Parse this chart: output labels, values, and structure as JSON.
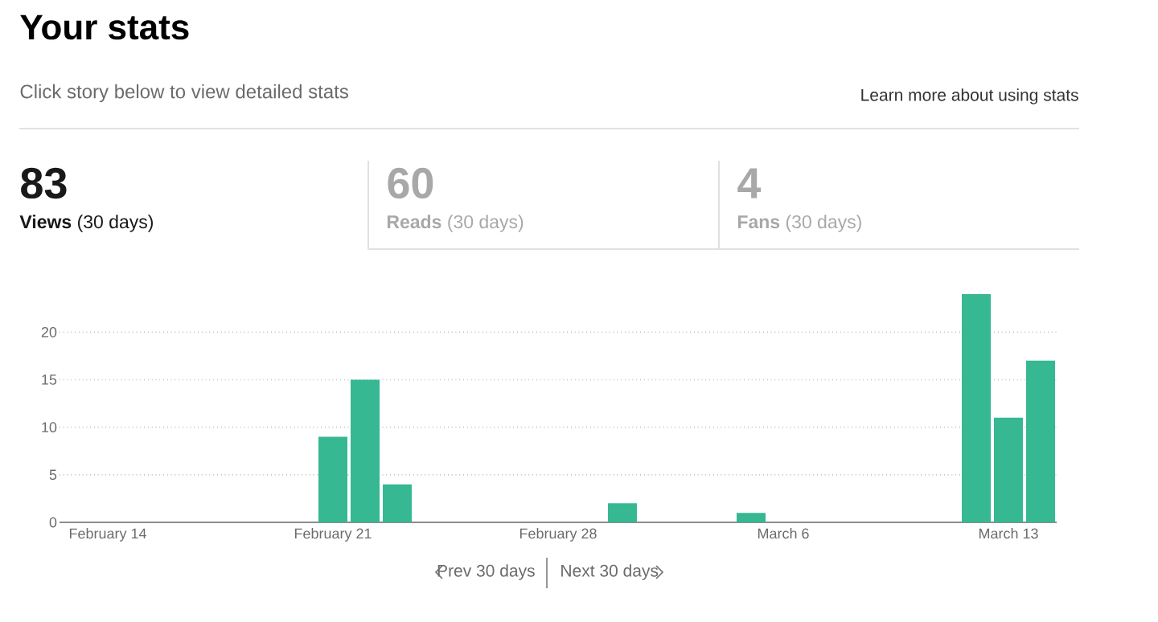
{
  "chart_data": {
    "type": "bar",
    "title": "Your stats",
    "subtitle": "Click story below to view detailed stats",
    "annotations": [
      "Learn more about using stats",
      "83",
      "**Views** (30 days)",
      "60",
      "**Reads** (30 days)",
      "4",
      "**Fans** (30 days)",
      "Prev 30 days",
      "Next 30 days"
    ],
    "categories": [
      null,
      "February 14",
      null,
      null,
      null,
      null,
      null,
      null,
      "February 21",
      null,
      null,
      null,
      null,
      null,
      null,
      "February 28",
      null,
      null,
      null,
      null,
      null,
      null,
      "March 6",
      null,
      null,
      null,
      null,
      null,
      null,
      "March 13",
      null
    ],
    "values": [
      0,
      0,
      0,
      0,
      0,
      0,
      0,
      0,
      9,
      15,
      4,
      0,
      0,
      0,
      0,
      0,
      0,
      2,
      0,
      0,
      0,
      1,
      0,
      0,
      0,
      0,
      0,
      0,
      24,
      11,
      17
    ],
    "color": "#36b892",
    "ylim": [
      0,
      24
    ],
    "yticks": [
      0,
      5,
      10,
      15,
      20
    ],
    "grid": "y"
  }
}
